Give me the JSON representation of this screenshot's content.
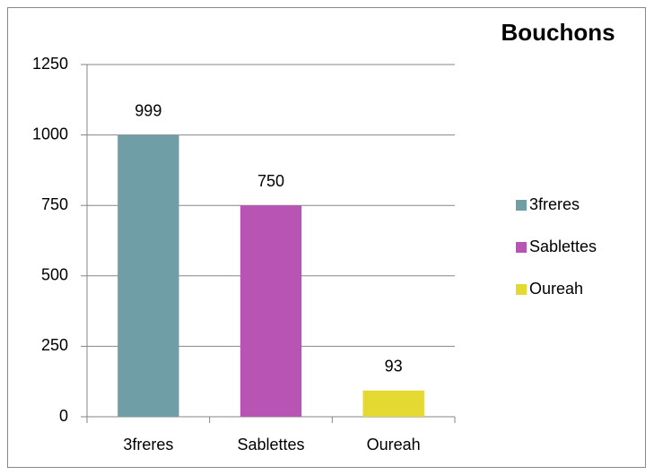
{
  "chart_data": {
    "type": "bar",
    "title": "Bouchons",
    "categories": [
      "3freres",
      "Sablettes",
      "Oureah"
    ],
    "values": [
      999,
      750,
      93
    ],
    "colors": [
      "#6f9ea6",
      "#b855b4",
      "#e4d832"
    ],
    "ylim": [
      0,
      1250
    ],
    "yticks": [
      0,
      250,
      500,
      750,
      1000,
      1250
    ],
    "grid": true,
    "legend": "right"
  }
}
